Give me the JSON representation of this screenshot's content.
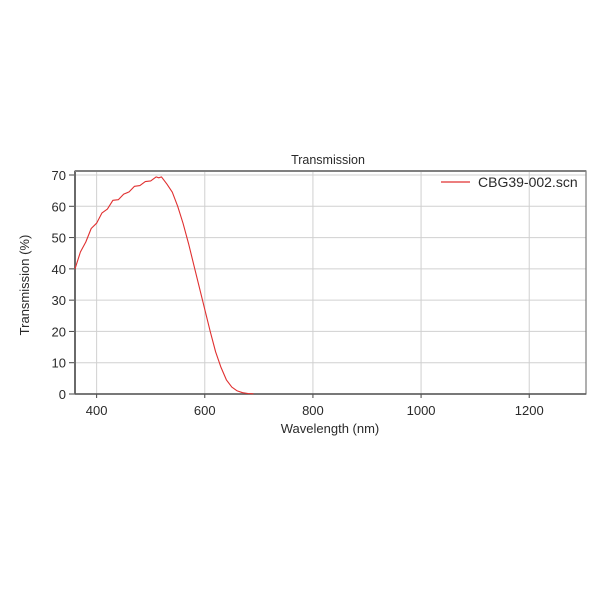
{
  "chart_data": {
    "type": "line",
    "title": "Transmission",
    "xlabel": "Wavelength (nm)",
    "ylabel": "Transmission (%)",
    "xlim": [
      360,
      1305
    ],
    "ylim": [
      0,
      70
    ],
    "xticks": [
      400,
      600,
      800,
      1000,
      1200
    ],
    "yticks": [
      0,
      10,
      20,
      30,
      40,
      50,
      60,
      70
    ],
    "grid": true,
    "legend_position": "upper right",
    "series": [
      {
        "name": "CBG39-002.scn",
        "color": "#e03030",
        "x": [
          360,
          370,
          380,
          390,
          400,
          410,
          420,
          430,
          440,
          450,
          460,
          470,
          480,
          490,
          500,
          510,
          515,
          520,
          530,
          540,
          550,
          560,
          570,
          580,
          590,
          600,
          610,
          620,
          630,
          640,
          650,
          660,
          670,
          680,
          690
        ],
        "values": [
          40,
          45,
          49,
          52.5,
          55,
          57.5,
          59.5,
          61.5,
          62.5,
          63.5,
          65,
          66,
          67,
          67.5,
          68.5,
          69,
          69.5,
          69,
          67.5,
          64.5,
          60,
          54.5,
          48,
          41,
          34,
          27,
          20,
          13.5,
          8.5,
          4.5,
          2.2,
          1.0,
          0.4,
          0.15,
          0.05
        ]
      }
    ]
  }
}
